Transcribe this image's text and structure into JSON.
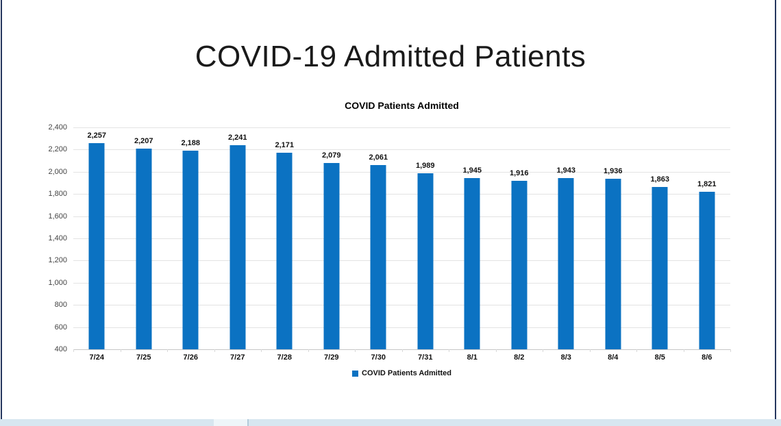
{
  "page": {
    "title": "COVID-19 Admitted Patients"
  },
  "chart_data": {
    "type": "bar",
    "title": "COVID Patients Admitted",
    "categories": [
      "7/24",
      "7/25",
      "7/26",
      "7/27",
      "7/28",
      "7/29",
      "7/30",
      "7/31",
      "8/1",
      "8/2",
      "8/3",
      "8/4",
      "8/5",
      "8/6"
    ],
    "values": [
      2257,
      2207,
      2188,
      2241,
      2171,
      2079,
      2061,
      1989,
      1945,
      1916,
      1943,
      1936,
      1863,
      1821
    ],
    "data_labels": [
      "2,257",
      "2,207",
      "2,188",
      "2,241",
      "2,171",
      "2,079",
      "2,061",
      "1,989",
      "1,945",
      "1,916",
      "1,943",
      "1,936",
      "1,863",
      "1,821"
    ],
    "y_ticks": [
      "2,400",
      "2,200",
      "2,000",
      "1,800",
      "1,600",
      "1,400",
      "1,200",
      "1,000",
      "800",
      "600",
      "400"
    ],
    "ylim": [
      400,
      2400
    ],
    "grid": true,
    "legend": {
      "label": "COVID Patients Admitted",
      "position": "bottom"
    }
  },
  "colors": {
    "bar": "#0b72c2",
    "border": "#24365e",
    "strip": "#d7e6f0",
    "strip_light": "#eef5f9",
    "strip_divider": "#b3cbda"
  }
}
